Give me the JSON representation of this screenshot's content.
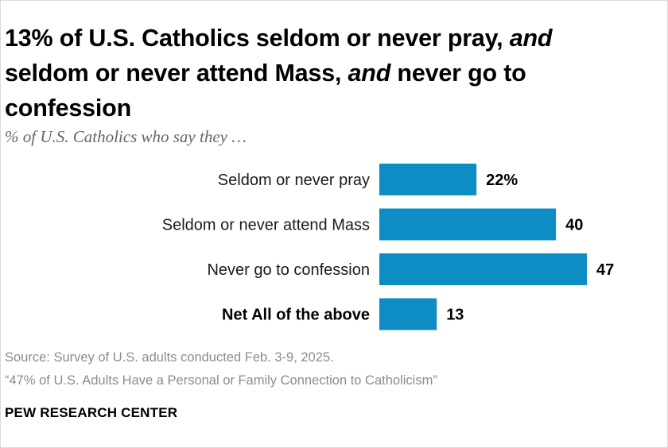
{
  "title": {
    "part1": "13% of U.S. Catholics seldom or never pray, ",
    "and1": "and",
    "part2": " seldom or never attend Mass, ",
    "and2": "and",
    "part3": " never go to confession"
  },
  "subtitle": "% of U.S. Catholics who say they …",
  "chart_data": {
    "type": "bar",
    "orientation": "horizontal",
    "categories": [
      "Seldom or never pray",
      "Seldom or never attend Mass",
      "Never go to confession",
      "Net All of the above"
    ],
    "values": [
      22,
      40,
      47,
      13
    ],
    "value_labels": [
      "22%",
      "40",
      "47",
      "13"
    ],
    "bold_categories": [
      "Net All of the above"
    ],
    "bar_color": "#0d8dc4",
    "xlim": [
      0,
      47
    ]
  },
  "footer": {
    "source": "Source: Survey of U.S. adults conducted Feb. 3-9, 2025.",
    "report": "“47% of U.S. Adults Have a Personal or Family Connection to Catholicism”",
    "brand": "PEW RESEARCH CENTER"
  }
}
